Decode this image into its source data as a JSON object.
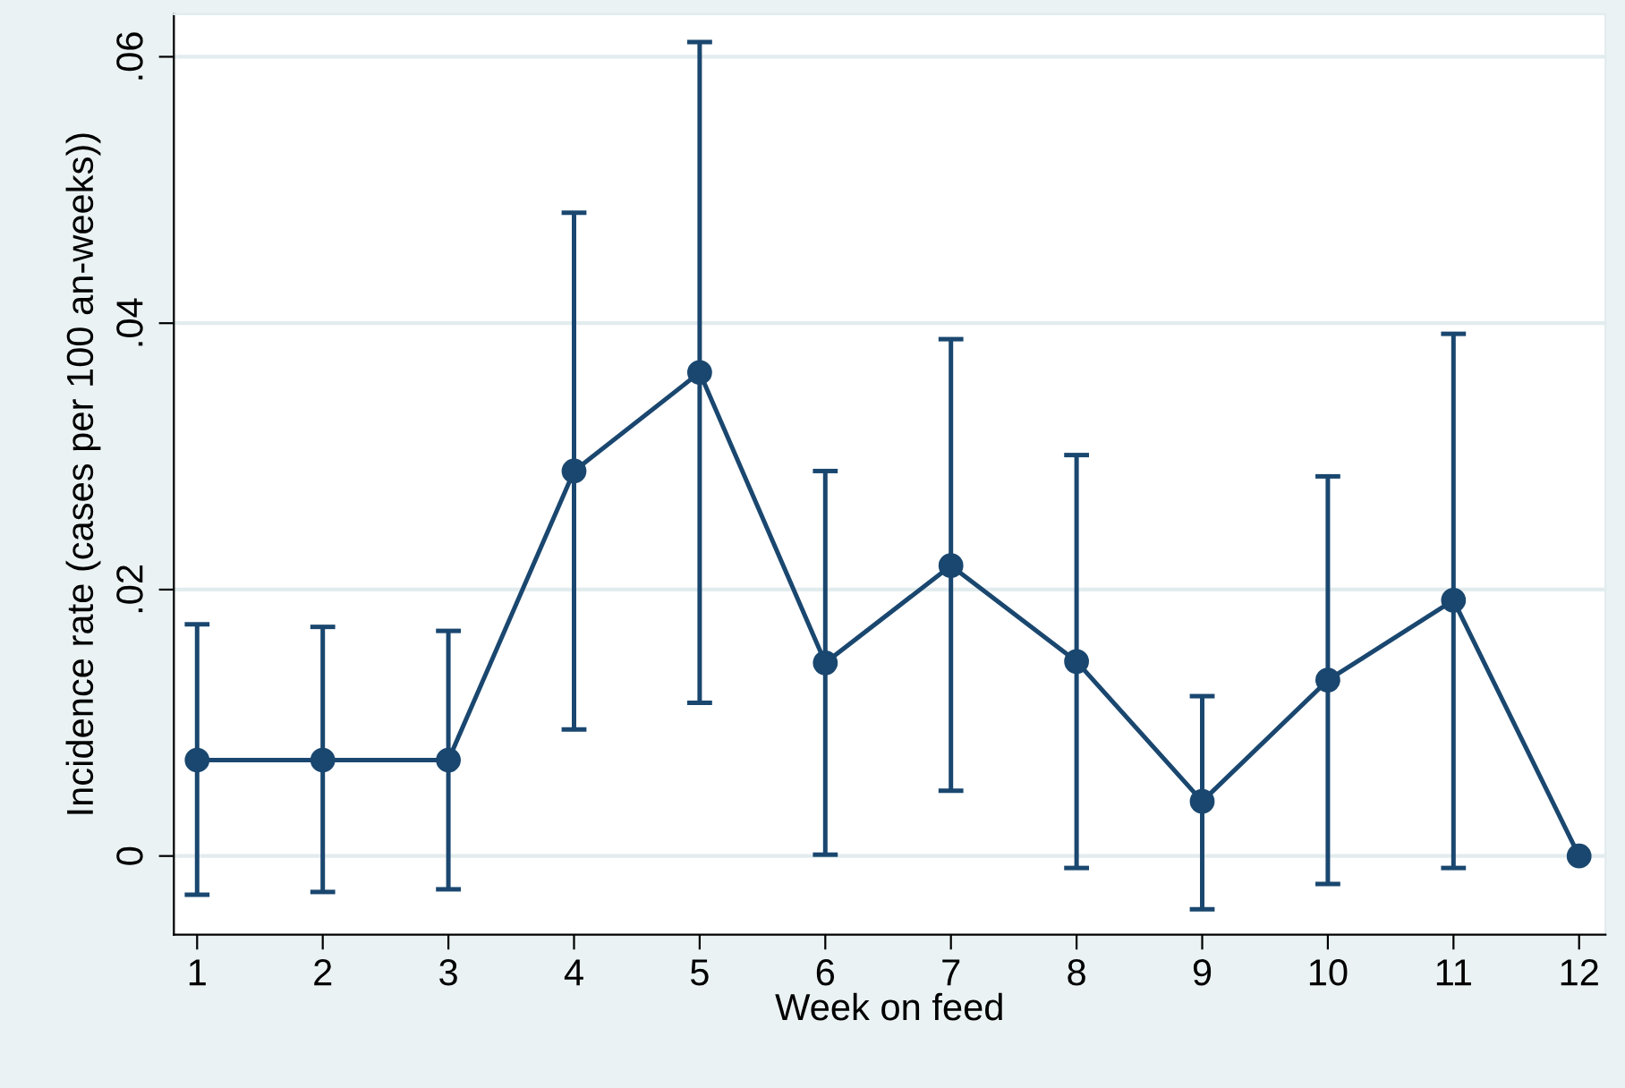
{
  "chart_data": {
    "type": "line",
    "xlabel": "Week on feed",
    "ylabel": "Incidence rate (cases per 100 an-weeks))",
    "x": [
      1,
      2,
      3,
      4,
      5,
      6,
      7,
      8,
      9,
      10,
      11,
      12
    ],
    "values": [
      0.0072,
      0.0072,
      0.0072,
      0.0289,
      0.0363,
      0.0145,
      0.0218,
      0.0146,
      0.0041,
      0.0132,
      0.0192,
      0
    ],
    "errors": [
      [
        -0.0029,
        0.0174
      ],
      [
        -0.0027,
        0.0172
      ],
      [
        -0.0025,
        0.0169
      ],
      [
        0.0095,
        0.0483
      ],
      [
        0.0115,
        0.0611
      ],
      [
        0.0001,
        0.0289
      ],
      [
        0.0049,
        0.0388
      ],
      [
        -0.0009,
        0.0301
      ],
      [
        -0.004,
        0.012
      ],
      [
        -0.0021,
        0.0285
      ],
      [
        -0.0009,
        0.0392
      ],
      null
    ],
    "color": "#1a476f",
    "marker": "circle",
    "line_style": "solid",
    "grid": "y",
    "xlim": [
      0.815,
      12.21
    ],
    "xticks": [
      1,
      2,
      3,
      4,
      5,
      6,
      7,
      8,
      9,
      10,
      11,
      12
    ],
    "ylim": [
      -0.0059,
      0.0632
    ],
    "yticks": [
      {
        "value": 0,
        "label": "0"
      },
      {
        "value": 0.02,
        "label": ".02"
      },
      {
        "value": 0.04,
        "label": ".04"
      },
      {
        "value": 0.06,
        "label": ".06"
      }
    ]
  }
}
